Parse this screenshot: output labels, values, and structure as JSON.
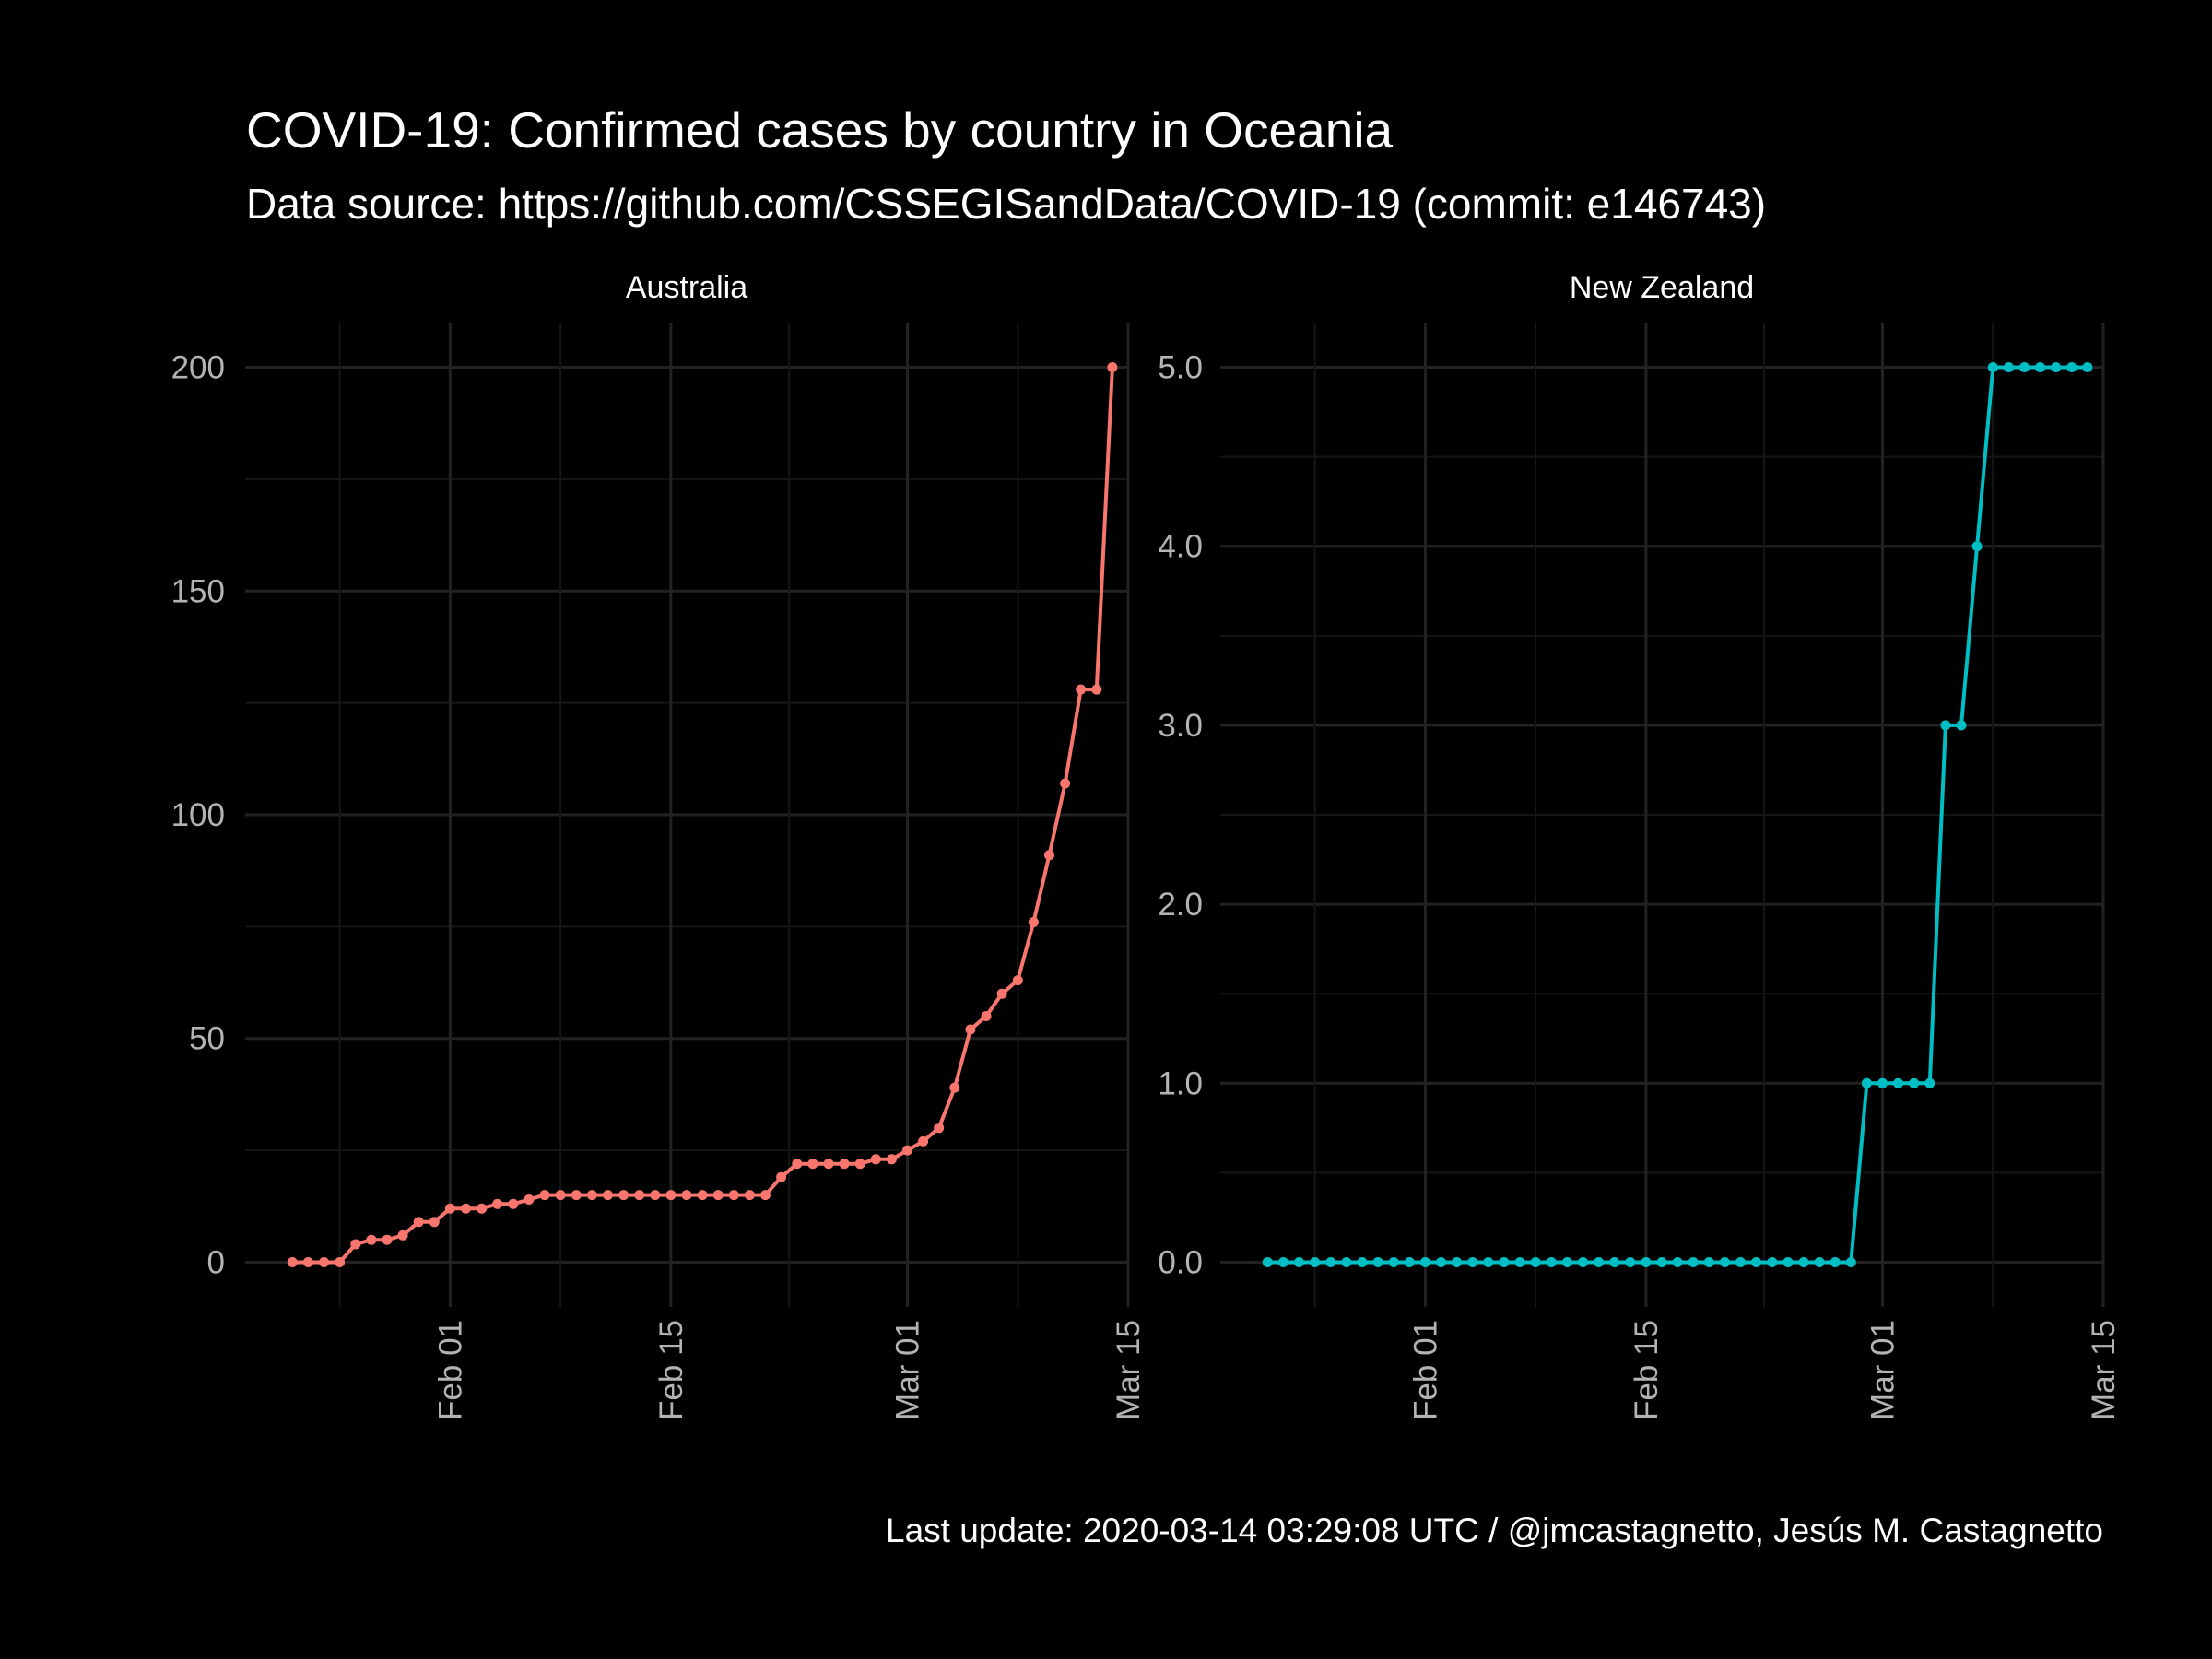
{
  "title": "COVID-19: Confirmed cases by country in Oceania",
  "subtitle": "Data source: https://github.com/CSSEGISandData/COVID-19 (commit: e146743)",
  "caption": "Last update:  2020-03-14 03:29:08 UTC / @jmcastagnetto, Jesús M. Castagnetto",
  "chart_data": [
    {
      "type": "line",
      "facet": "Australia",
      "color": "#F8766D",
      "x_ticks": [
        "2020-02-01",
        "2020-02-15",
        "2020-03-01",
        "2020-03-15"
      ],
      "x_tick_labels": [
        "Feb 01",
        "Feb 15",
        "Mar 01",
        "Mar 15"
      ],
      "y_ticks": [
        0,
        50,
        100,
        150,
        200
      ],
      "y_tick_labels": [
        "0",
        "50",
        "100",
        "150",
        "200"
      ],
      "ylim": [
        -10,
        210
      ],
      "xlim": [
        "2020-01-19",
        "2020-03-15"
      ],
      "grid": true,
      "start_date": "2020-01-22",
      "values": [
        0,
        0,
        0,
        0,
        4,
        5,
        5,
        6,
        9,
        9,
        12,
        12,
        12,
        13,
        13,
        14,
        15,
        15,
        15,
        15,
        15,
        15,
        15,
        15,
        15,
        15,
        15,
        15,
        15,
        15,
        15,
        19,
        22,
        22,
        22,
        22,
        22,
        23,
        23,
        25,
        27,
        30,
        39,
        52,
        55,
        60,
        63,
        76,
        91,
        107,
        128,
        128,
        200
      ]
    },
    {
      "type": "line",
      "facet": "New Zealand",
      "color": "#00BFC4",
      "x_ticks": [
        "2020-02-01",
        "2020-02-15",
        "2020-03-01",
        "2020-03-15"
      ],
      "x_tick_labels": [
        "Feb 01",
        "Feb 15",
        "Mar 01",
        "Mar 15"
      ],
      "y_ticks": [
        0,
        1,
        2,
        3,
        4,
        5
      ],
      "y_tick_labels": [
        "0.0",
        "1.0",
        "2.0",
        "3.0",
        "4.0",
        "5.0"
      ],
      "ylim": [
        -0.25,
        5.25
      ],
      "xlim": [
        "2020-01-19",
        "2020-03-15"
      ],
      "grid": true,
      "start_date": "2020-01-22",
      "values": [
        0,
        0,
        0,
        0,
        0,
        0,
        0,
        0,
        0,
        0,
        0,
        0,
        0,
        0,
        0,
        0,
        0,
        0,
        0,
        0,
        0,
        0,
        0,
        0,
        0,
        0,
        0,
        0,
        0,
        0,
        0,
        0,
        0,
        0,
        0,
        0,
        0,
        0,
        1,
        1,
        1,
        1,
        1,
        3,
        3,
        4,
        5,
        5,
        5,
        5,
        5,
        5,
        5
      ]
    }
  ]
}
